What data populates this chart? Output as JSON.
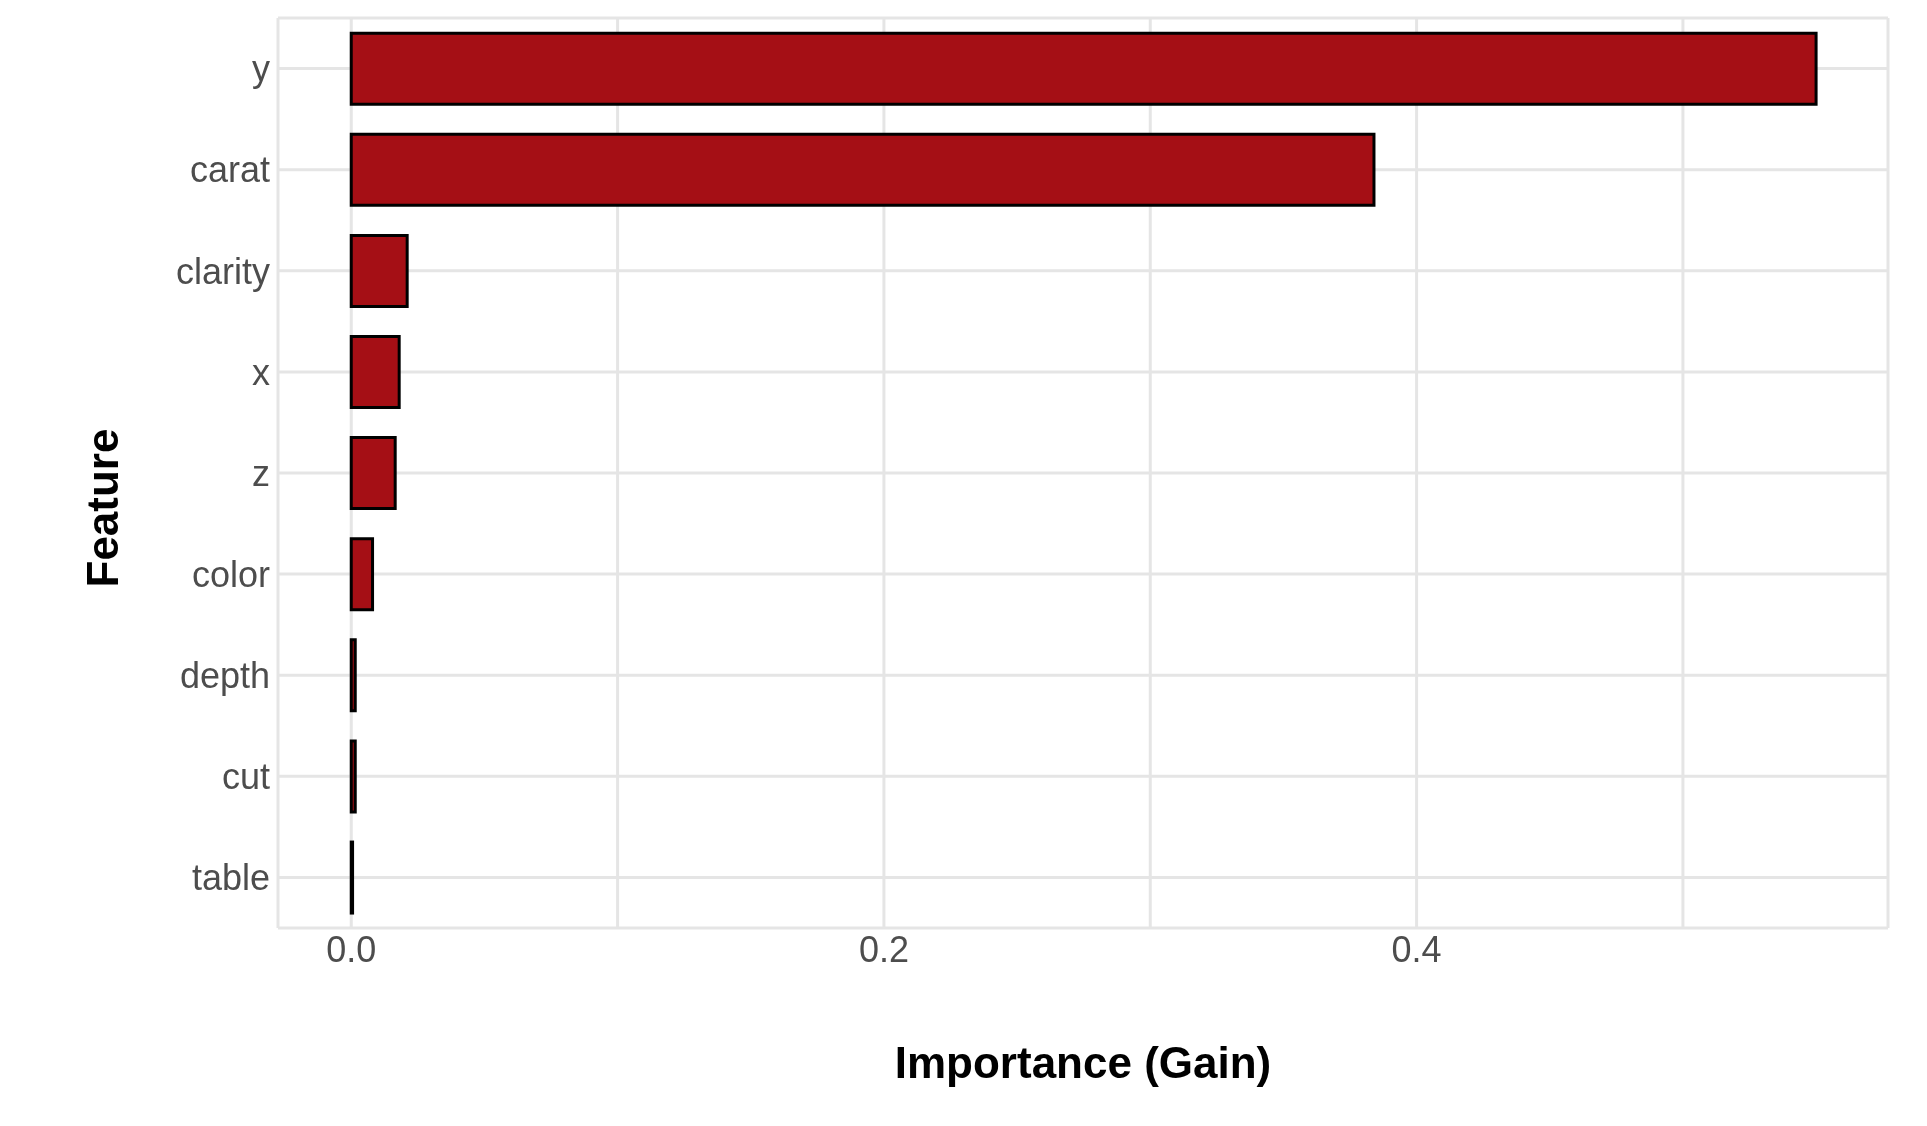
{
  "chart_data": {
    "type": "bar",
    "orientation": "horizontal",
    "xlabel": "Importance (Gain)",
    "ylabel": "Feature",
    "categories": [
      "y",
      "carat",
      "clarity",
      "x",
      "z",
      "color",
      "depth",
      "cut",
      "table"
    ],
    "values": [
      0.55,
      0.384,
      0.021,
      0.018,
      0.0165,
      0.008,
      0.0015,
      0.0015,
      0.0005
    ],
    "color": "#a50f15",
    "xlim": [
      -0.0275,
      0.577
    ],
    "xticks": [
      {
        "value": 0,
        "label": "0.0"
      },
      {
        "value": 0.1,
        "label": null
      },
      0.2,
      {
        "value": 0.3,
        "label": null
      },
      0.4,
      {
        "value": 0.5,
        "label": null
      }
    ],
    "grid": true
  }
}
